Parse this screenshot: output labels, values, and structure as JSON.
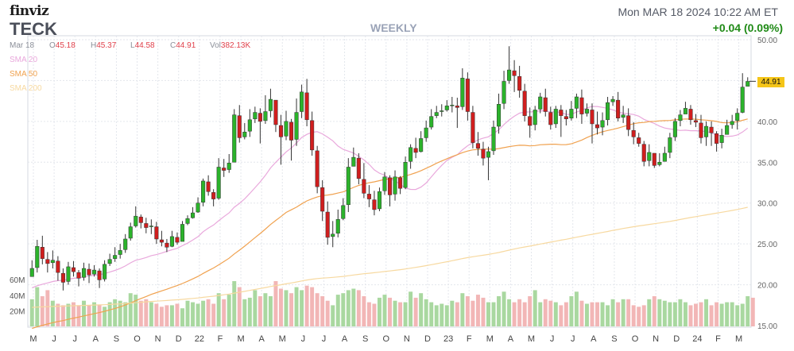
{
  "header": {
    "logo": "finviz",
    "ticker": "TECK",
    "timeframe": "WEEKLY",
    "datetime": "Mon MAR 18 2024 10:22 AM ET",
    "change": "+0.04 (0.09%)"
  },
  "ohlc": {
    "date": "Mar 18",
    "open_label": "O",
    "open": "45.18",
    "high_label": "H",
    "high": "45.37",
    "low_label": "L",
    "low": "44.58",
    "close_label": "C",
    "close": "44.91",
    "volume_label": "Vol",
    "volume": "382.13K"
  },
  "legend": [
    {
      "label": "SMA 20",
      "color": "#e9a8dc"
    },
    {
      "label": "SMA 50",
      "color": "#f0a250"
    },
    {
      "label": "SMA 200",
      "color": "#f7d9a0"
    }
  ],
  "chart_data": {
    "type": "candlestick",
    "price_axis": {
      "ticks": [
        "15.00",
        "20.00",
        "25.00",
        "30.00",
        "35.00",
        "40.00",
        "45.00",
        "50.00"
      ],
      "range": [
        15,
        50
      ]
    },
    "volume_axis": {
      "ticks": [
        "20M",
        "40M",
        "60M"
      ]
    },
    "x_tick_labels": [
      "M",
      "J",
      "J",
      "A",
      "S",
      "O",
      "N",
      "D",
      "22",
      "F",
      "M",
      "A",
      "M",
      "J",
      "J",
      "A",
      "S",
      "O",
      "N",
      "D",
      "23",
      "F",
      "M",
      "A",
      "M",
      "J",
      "J",
      "A",
      "S",
      "O",
      "N",
      "D",
      "24",
      "F",
      "M"
    ],
    "last_price": "44.91",
    "grid": true,
    "colors": {
      "up": "#2bb32b",
      "down": "#d01e1e",
      "up_vol": "#a9d8a0",
      "down_vol": "#f2b6b6"
    },
    "closes": [
      22.0,
      24.7,
      23.2,
      22.6,
      23.0,
      21.5,
      20.3,
      22.2,
      21.6,
      20.8,
      22.0,
      21.2,
      21.8,
      20.6,
      22.5,
      23.1,
      23.6,
      24.2,
      25.6,
      27.1,
      28.4,
      27.6,
      27.0,
      27.2,
      25.6,
      25.2,
      24.6,
      25.9,
      25.2,
      27.4,
      28.1,
      28.8,
      30.0,
      32.7,
      31.4,
      30.5,
      34.4,
      34.0,
      34.9,
      40.8,
      38.0,
      38.7,
      40.2,
      41.1,
      40.0,
      41.2,
      42.7,
      39.6,
      38.1,
      40.0,
      37.7,
      41.1,
      43.6,
      40.2,
      36.5,
      32.0,
      29.0,
      25.8,
      26.2,
      28.0,
      29.7,
      34.4,
      35.6,
      33.0,
      31.2,
      30.5,
      29.2,
      31.4,
      33.2,
      31.0,
      33.2,
      31.8,
      35.0,
      36.8,
      36.2,
      37.9,
      39.2,
      40.6,
      41.1,
      41.3,
      41.9,
      42.0,
      41.7,
      45.3,
      41.2,
      37.4,
      36.7,
      35.5,
      36.3,
      39.3,
      42.1,
      44.9,
      46.3,
      45.6,
      43.8,
      40.7,
      39.5,
      41.4,
      43.0,
      41.2,
      39.6,
      41.5,
      40.7,
      40.3,
      41.5,
      43.0,
      40.9,
      41.5,
      39.7,
      39.2,
      40.1,
      42.3,
      42.7,
      40.4,
      40.8,
      39.0,
      38.1,
      37.3,
      35.1,
      36.2,
      34.6,
      35.0,
      36.1,
      38.0,
      40.0,
      40.8,
      41.6,
      40.2,
      39.9,
      38.0,
      39.4,
      38.6,
      37.3,
      38.3,
      39.5,
      40.0,
      41.0,
      44.2,
      44.9
    ],
    "highs": [
      23.0,
      25.5,
      26.0,
      24.0,
      24.2,
      23.5,
      22.0,
      22.8,
      22.9,
      21.8,
      22.7,
      22.6,
      22.4,
      22.0,
      23.0,
      23.8,
      24.6,
      25.0,
      26.2,
      27.6,
      29.6,
      28.6,
      28.2,
      28.0,
      27.7,
      26.6,
      25.6,
      26.6,
      26.4,
      27.8,
      28.5,
      29.5,
      30.7,
      33.0,
      33.4,
      31.7,
      35.5,
      35.4,
      36.0,
      41.5,
      42.0,
      39.8,
      41.5,
      41.8,
      41.6,
      43.2,
      44.0,
      42.6,
      40.8,
      41.3,
      40.3,
      42.8,
      44.5,
      45.2,
      41.2,
      37.0,
      32.8,
      30.2,
      27.8,
      29.2,
      30.6,
      35.5,
      36.8,
      36.1,
      34.9,
      32.2,
      31.5,
      31.9,
      33.8,
      33.4,
      34.0,
      33.3,
      35.7,
      37.2,
      38.0,
      38.8,
      40.1,
      41.5,
      41.9,
      42.1,
      42.6,
      43.0,
      42.9,
      46.5,
      46.0,
      41.9,
      38.7,
      37.5,
      36.9,
      40.1,
      43.4,
      46.2,
      49.2,
      47.5,
      46.8,
      44.6,
      41.7,
      41.9,
      43.5,
      44.0,
      41.8,
      41.9,
      42.0,
      41.4,
      42.5,
      43.4,
      43.9,
      42.2,
      42.2,
      41.2,
      41.1,
      43.0,
      43.1,
      43.6,
      41.9,
      41.6,
      39.9,
      38.6,
      37.6,
      37.2,
      36.0,
      36.1,
      36.9,
      38.6,
      40.4,
      41.4,
      42.4,
      42.0,
      40.9,
      40.8,
      40.0,
      40.0,
      38.8,
      39.1,
      40.2,
      40.8,
      41.6,
      45.9,
      45.4
    ],
    "lows": [
      21.0,
      21.5,
      22.5,
      21.5,
      22.0,
      20.5,
      19.3,
      20.0,
      21.0,
      19.8,
      20.5,
      20.2,
      21.0,
      19.6,
      20.4,
      22.3,
      22.8,
      23.2,
      23.9,
      25.4,
      27.0,
      26.9,
      26.3,
      26.2,
      25.0,
      24.7,
      24.0,
      24.6,
      24.9,
      25.6,
      27.3,
      28.1,
      28.8,
      29.6,
      30.9,
      29.6,
      30.4,
      33.2,
      33.7,
      35.0,
      37.4,
      37.8,
      38.1,
      39.8,
      37.3,
      39.7,
      40.5,
      38.7,
      34.7,
      37.7,
      35.2,
      37.0,
      40.4,
      39.4,
      35.8,
      31.2,
      27.8,
      24.9,
      24.6,
      25.8,
      27.9,
      28.9,
      34.5,
      32.3,
      30.6,
      29.5,
      28.5,
      29.0,
      31.0,
      29.6,
      30.3,
      31.1,
      31.7,
      34.2,
      35.5,
      36.2,
      37.5,
      39.0,
      40.4,
      40.6,
      41.2,
      41.1,
      39.2,
      41.4,
      40.1,
      36.7,
      35.8,
      34.6,
      32.8,
      35.9,
      38.5,
      41.5,
      44.6,
      43.6,
      42.9,
      40.0,
      38.0,
      38.9,
      41.0,
      40.6,
      39.0,
      39.2,
      38.1,
      39.5,
      40.1,
      40.4,
      39.7,
      40.6,
      37.3,
      38.4,
      38.3,
      39.5,
      41.9,
      40.0,
      39.8,
      38.2,
      37.2,
      36.9,
      34.5,
      34.5,
      34.3,
      34.5,
      35.1,
      35.5,
      37.6,
      39.4,
      41.0,
      39.6,
      39.3,
      37.3,
      37.0,
      37.0,
      36.3,
      36.7,
      38.6,
      39.1,
      39.0,
      41.0,
      44.5
    ],
    "volumes": [
      18,
      26,
      20,
      24,
      17,
      15,
      14,
      15,
      16,
      14,
      17,
      14,
      16,
      14,
      13,
      16,
      18,
      17,
      16,
      22,
      21,
      17,
      18,
      16,
      15,
      13,
      14,
      14,
      15,
      12,
      17,
      16,
      15,
      17,
      18,
      15,
      22,
      18,
      21,
      30,
      26,
      18,
      19,
      24,
      20,
      22,
      20,
      30,
      25,
      24,
      22,
      26,
      24,
      27,
      26,
      22,
      20,
      17,
      14,
      21,
      22,
      24,
      25,
      24,
      20,
      16,
      15,
      19,
      21,
      19,
      17,
      16,
      16,
      23,
      19,
      22,
      18,
      16,
      14,
      15,
      14,
      17,
      16,
      22,
      20,
      17,
      21,
      19,
      16,
      16,
      20,
      23,
      18,
      16,
      18,
      16,
      20,
      24,
      16,
      18,
      17,
      16,
      14,
      16,
      20,
      23,
      17,
      15,
      16,
      16,
      16,
      14,
      18,
      16,
      18,
      18,
      14,
      13,
      14,
      18,
      20,
      18,
      17,
      16,
      16,
      18,
      16,
      14,
      15,
      16,
      18,
      14,
      16,
      15,
      16,
      16,
      14,
      15,
      20,
      19
    ]
  }
}
